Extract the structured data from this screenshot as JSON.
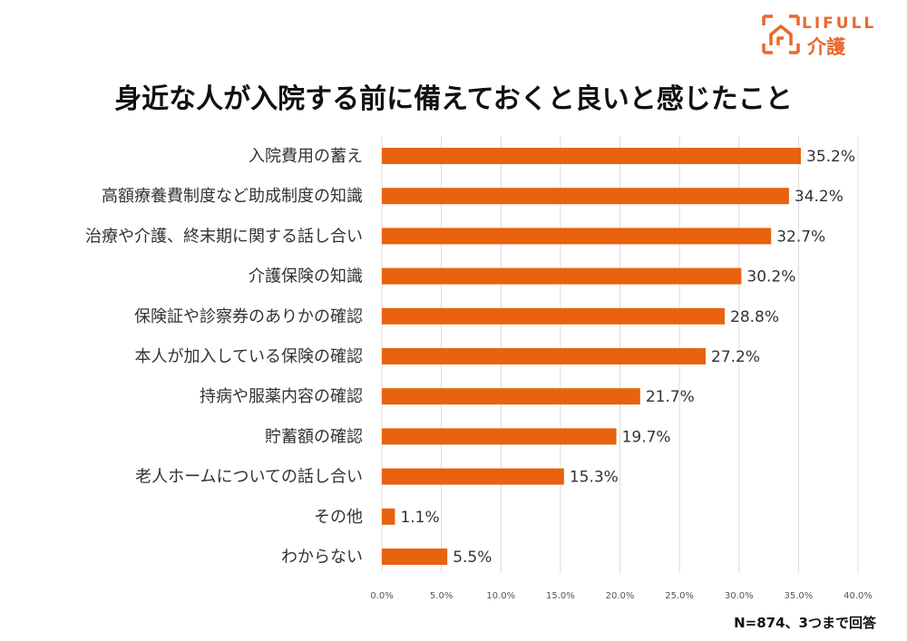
{
  "logo": {
    "brand": "LIFULL",
    "sub": "介護"
  },
  "colors": {
    "bar": "#e8620f",
    "grid": "#dcdcdc",
    "accent": "#e8692a"
  },
  "note": "N=874、3つまで回答",
  "chart_data": {
    "type": "bar",
    "orientation": "horizontal",
    "title": "身近な人が入院する前に備えておくと良いと感じたこと",
    "categories": [
      "入院費用の蓄え",
      "高額療養費制度など助成制度の知識",
      "治療や介護、終末期に関する話し合い",
      "介護保険の知識",
      "保険証や診察券のありかの確認",
      "本人が加入している保険の確認",
      "持病や服薬内容の確認",
      "貯蓄額の確認",
      "老人ホームについての話し合い",
      "その他",
      "わからない"
    ],
    "values": [
      35.2,
      34.2,
      32.7,
      30.2,
      28.8,
      27.2,
      21.7,
      19.7,
      15.3,
      1.1,
      5.5
    ],
    "value_labels": [
      "35.2%",
      "34.2%",
      "32.7%",
      "30.2%",
      "28.8%",
      "27.2%",
      "21.7%",
      "19.7%",
      "15.3%",
      "1.1%",
      "5.5%"
    ],
    "xlim": [
      0,
      40
    ],
    "xticks": [
      0,
      5,
      10,
      15,
      20,
      25,
      30,
      35,
      40
    ],
    "xtick_labels": [
      "0.0%",
      "5.0%",
      "10.0%",
      "15.0%",
      "20.0%",
      "25.0%",
      "30.0%",
      "35.0%",
      "40.0%"
    ],
    "grid": true
  }
}
